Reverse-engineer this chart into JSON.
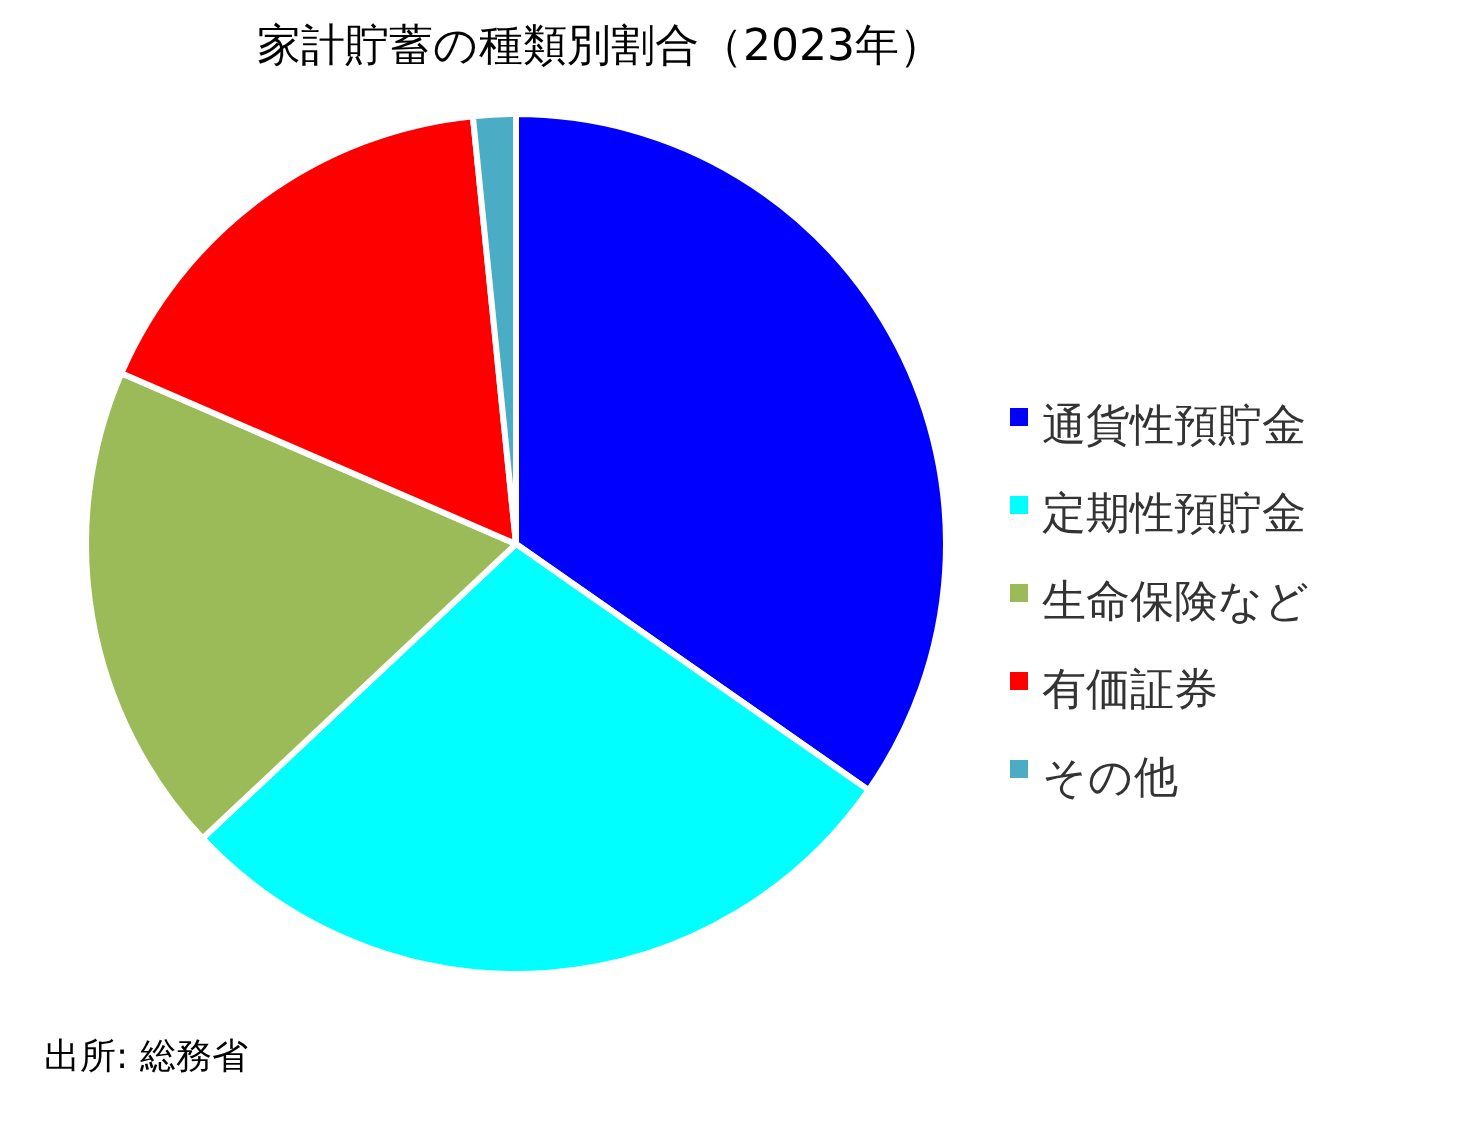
{
  "chart_data": {
    "type": "pie",
    "title": "家計貯蓄の種類別割合（2023年）",
    "categories": [
      "通貨性預貯金",
      "定期性預貯金",
      "生命保険など",
      "有価証券",
      "その他"
    ],
    "values": [
      34.7,
      28.3,
      18.5,
      16.9,
      1.6
    ],
    "colors": [
      "#0000ff",
      "#00ffff",
      "#9bbb59",
      "#ff0000",
      "#4bacc6"
    ],
    "legend": "right",
    "annotations": [
      "出所: 総務省"
    ]
  }
}
